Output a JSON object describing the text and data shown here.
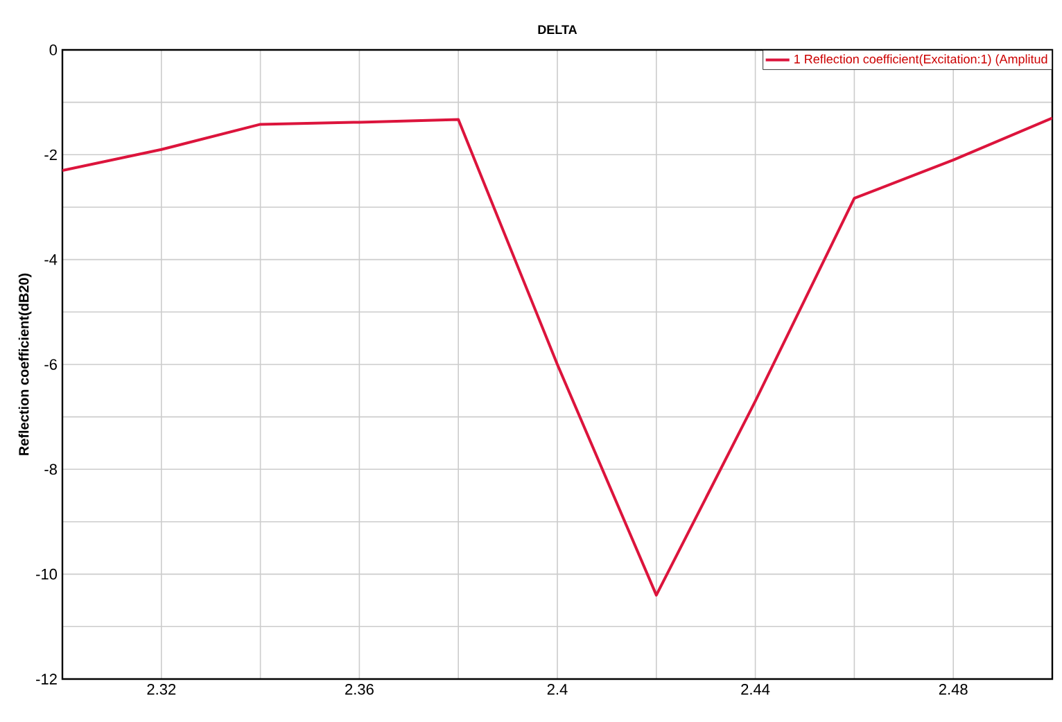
{
  "chart_data": {
    "type": "line",
    "title": "DELTA",
    "ylabel": "Reflection coefficient(dB20)",
    "x": [
      2.3,
      2.32,
      2.34,
      2.36,
      2.38,
      2.4,
      2.42,
      2.44,
      2.46,
      2.48,
      2.5
    ],
    "series": [
      {
        "name": "1 Reflection coefficient(Excitation:1) (Amplitud",
        "color": "#dc143c",
        "values": [
          -2.3,
          -1.9,
          -1.42,
          -1.38,
          -1.33,
          -6.0,
          -10.4,
          -6.7,
          -2.83,
          -2.1,
          -1.3
        ]
      }
    ],
    "xlim": [
      2.3,
      2.5
    ],
    "ylim": [
      -12,
      0
    ],
    "xticks": [
      {
        "value": 2.3,
        "label": null
      },
      2.32,
      {
        "value": 2.34,
        "label": null
      },
      2.36,
      {
        "value": 2.38,
        "label": null
      },
      2.4,
      {
        "value": 2.42,
        "label": null
      },
      2.44,
      {
        "value": 2.46,
        "label": null
      },
      2.48,
      {
        "value": 2.5,
        "label": null
      }
    ],
    "yticks": [
      0,
      {
        "value": -1,
        "label": null
      },
      -2,
      {
        "value": -3,
        "label": null
      },
      -4,
      {
        "value": -5,
        "label": null
      },
      -6,
      {
        "value": -7,
        "label": null
      },
      -8,
      {
        "value": -9,
        "label": null
      },
      -10,
      {
        "value": -11,
        "label": null
      },
      -12
    ],
    "grid": true,
    "legend": "top right",
    "marker": "none",
    "line_style": "solid"
  }
}
